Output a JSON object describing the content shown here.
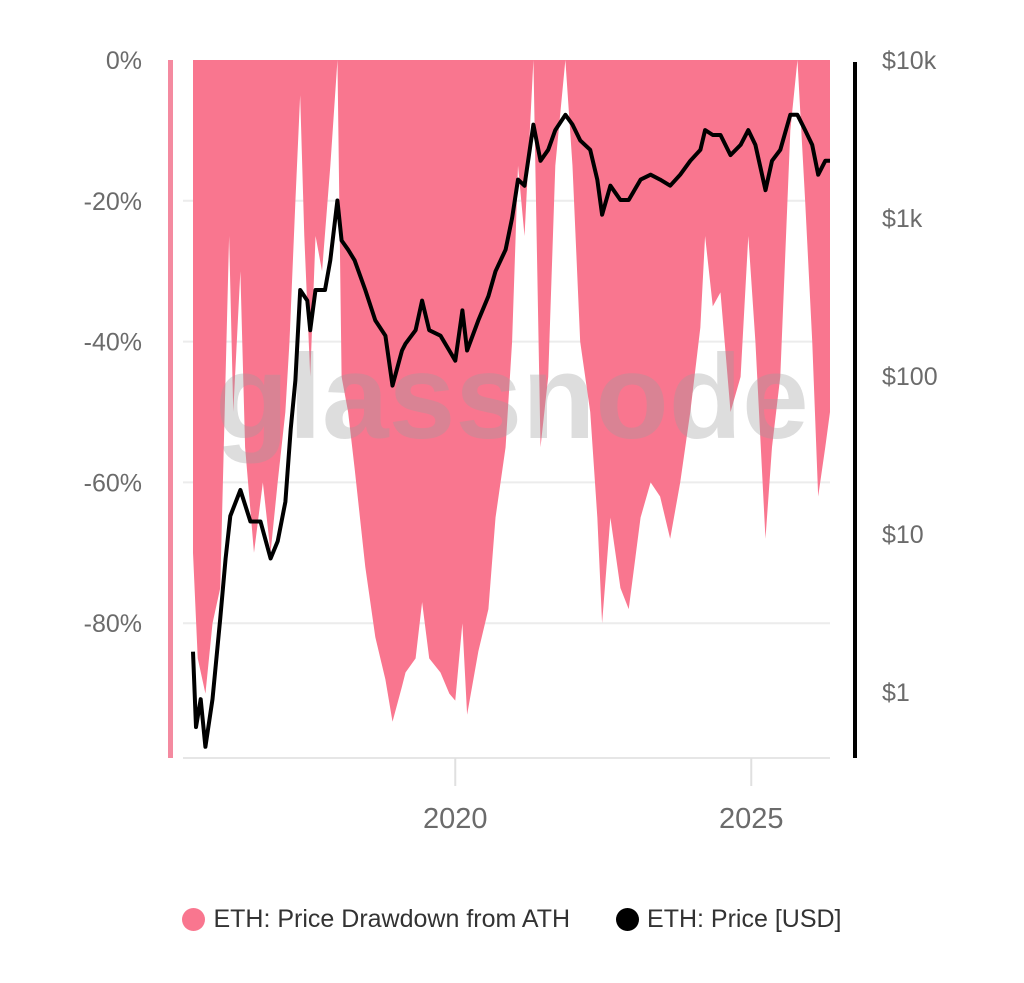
{
  "chart_data": {
    "type": "area+line",
    "watermark": "glassnode",
    "x_axis": {
      "ticks": [
        "2020",
        "2025"
      ],
      "range": [
        2015.57,
        2026.33
      ]
    },
    "y_left": {
      "ticks": [
        "0%",
        "-20%",
        "-40%",
        "-60%",
        "-80%"
      ],
      "range": [
        -100,
        0
      ],
      "unit": "%"
    },
    "y_right": {
      "ticks": [
        "$10k",
        "$1k",
        "$100",
        "$10",
        "$1"
      ],
      "scale": "log",
      "range": [
        0.36,
        10000
      ]
    },
    "grid": "horizontal",
    "legend_position": "bottom",
    "colors": {
      "drawdown": "#f9768f",
      "price": "#000000"
    },
    "series": [
      {
        "name": "ETH: Price Drawdown from ATH",
        "type": "area",
        "axis": "left",
        "x": [
          2015.57,
          2015.65,
          2015.78,
          2015.9,
          2016.03,
          2016.12,
          2016.18,
          2016.25,
          2016.37,
          2016.45,
          2016.6,
          2016.75,
          2016.88,
          2017.0,
          2017.13,
          2017.2,
          2017.3,
          2017.38,
          2017.45,
          2017.55,
          2017.64,
          2017.75,
          2017.89,
          2018.01,
          2018.08,
          2018.19,
          2018.3,
          2018.48,
          2018.65,
          2018.82,
          2018.94,
          2019.1,
          2019.16,
          2019.33,
          2019.44,
          2019.56,
          2019.75,
          2019.9,
          2020.0,
          2020.12,
          2020.2,
          2020.39,
          2020.56,
          2020.68,
          2020.85,
          2020.96,
          2021.06,
          2021.17,
          2021.32,
          2021.44,
          2021.57,
          2021.69,
          2021.86,
          2021.98,
          2022.11,
          2022.28,
          2022.4,
          2022.48,
          2022.62,
          2022.79,
          2022.93,
          2023.13,
          2023.3,
          2023.46,
          2023.63,
          2023.8,
          2023.97,
          2024.14,
          2024.22,
          2024.35,
          2024.48,
          2024.65,
          2024.82,
          2024.95,
          2025.07,
          2025.24,
          2025.35,
          2025.49,
          2025.66,
          2025.78,
          2025.91,
          2026.03,
          2026.13,
          2026.25,
          2026.33
        ],
        "values": [
          -70,
          -85,
          -90,
          -80,
          -75,
          -45,
          -25,
          -50,
          -30,
          -55,
          -70,
          -60,
          -70,
          -60,
          -50,
          -40,
          -20,
          -5,
          -25,
          -45,
          -25,
          -30,
          -15,
          0,
          -45,
          -50,
          -58,
          -72,
          -82,
          -88,
          -94,
          -89,
          -87,
          -85,
          -77,
          -85,
          -87,
          -90,
          -91,
          -80,
          -93,
          -84,
          -78,
          -65,
          -55,
          -40,
          -15,
          -25,
          0,
          -55,
          -45,
          -15,
          0,
          -15,
          -40,
          -50,
          -65,
          -80,
          -65,
          -75,
          -78,
          -65,
          -60,
          -62,
          -68,
          -60,
          -50,
          -38,
          -25,
          -35,
          -33,
          -50,
          -45,
          -25,
          -40,
          -68,
          -55,
          -45,
          -10,
          0,
          -20,
          -40,
          -62,
          -55,
          -50
        ]
      },
      {
        "name": "ETH: Price [USD]",
        "type": "line",
        "axis": "right",
        "x": [
          2015.57,
          2015.62,
          2015.7,
          2015.78,
          2015.9,
          2016.03,
          2016.12,
          2016.2,
          2016.37,
          2016.54,
          2016.71,
          2016.88,
          2017.0,
          2017.13,
          2017.22,
          2017.3,
          2017.38,
          2017.5,
          2017.55,
          2017.64,
          2017.8,
          2017.89,
          2018.01,
          2018.08,
          2018.19,
          2018.3,
          2018.48,
          2018.65,
          2018.82,
          2018.94,
          2019.1,
          2019.16,
          2019.33,
          2019.44,
          2019.56,
          2019.75,
          2019.9,
          2020.0,
          2020.12,
          2020.2,
          2020.39,
          2020.56,
          2020.68,
          2020.85,
          2020.96,
          2021.06,
          2021.17,
          2021.32,
          2021.44,
          2021.57,
          2021.69,
          2021.86,
          2021.98,
          2022.11,
          2022.28,
          2022.4,
          2022.48,
          2022.62,
          2022.79,
          2022.93,
          2023.13,
          2023.3,
          2023.46,
          2023.63,
          2023.8,
          2023.97,
          2024.14,
          2024.22,
          2024.35,
          2024.48,
          2024.65,
          2024.82,
          2024.95,
          2025.07,
          2025.24,
          2025.35,
          2025.49,
          2025.66,
          2025.78,
          2025.91,
          2026.03,
          2026.13,
          2026.25,
          2026.33
        ],
        "values": [
          1.8,
          0.6,
          0.9,
          0.45,
          0.9,
          2.9,
          7,
          13,
          19,
          12,
          12,
          7,
          9,
          16,
          46,
          94,
          350,
          300,
          195,
          350,
          350,
          540,
          1290,
          720,
          630,
          540,
          350,
          225,
          180,
          87,
          145,
          160,
          195,
          300,
          195,
          180,
          145,
          125,
          260,
          145,
          225,
          320,
          460,
          630,
          1000,
          1750,
          1600,
          3900,
          2300,
          2700,
          3600,
          4500,
          3900,
          3100,
          2700,
          1750,
          1050,
          1600,
          1300,
          1300,
          1750,
          1880,
          1750,
          1600,
          1880,
          2300,
          2700,
          3600,
          3350,
          3350,
          2500,
          2900,
          3600,
          2900,
          1500,
          2300,
          2700,
          4500,
          4500,
          3600,
          2900,
          1880,
          2300,
          2300
        ]
      }
    ]
  },
  "legend": {
    "drawdown_label": "ETH: Price Drawdown from ATH",
    "price_label": "ETH: Price [USD]"
  }
}
